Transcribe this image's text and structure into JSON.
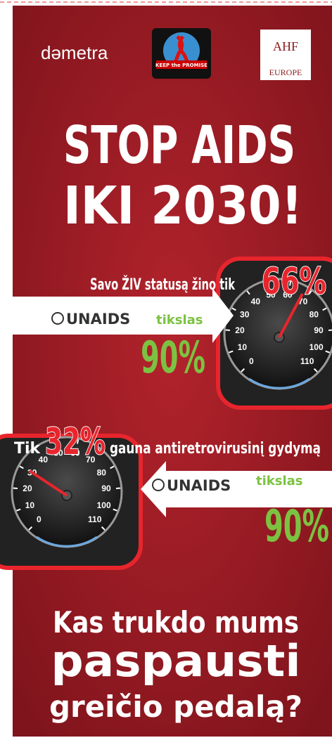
{
  "header": {
    "logo_left": "dəmetra",
    "logo_center": "KEEP the PROMISE",
    "logo_right_top": "AHF",
    "logo_right_bottom": "EUROPE"
  },
  "title": [
    "STOP AIDS",
    "IKI  2030!"
  ],
  "panels": [
    {
      "statement": "Savo ŽIV statusą žino tik",
      "value": "66%",
      "target_org": "UNAIDS",
      "target_label": "tikslas",
      "target_value": "90%"
    },
    {
      "statement_pre": "Tik",
      "value": "32%",
      "statement": "gauna antiretrovirusinį gydymą",
      "target_org": "UNAIDS",
      "target_label": "tikslas",
      "target_value": "90%"
    }
  ],
  "gauge_scale": [
    "0",
    "10",
    "20",
    "30",
    "40",
    "50",
    "60",
    "70",
    "80",
    "90",
    "100",
    "110"
  ],
  "question": [
    "Kas trukdo mums",
    "paspausti",
    "greičio  pedalą?"
  ]
}
